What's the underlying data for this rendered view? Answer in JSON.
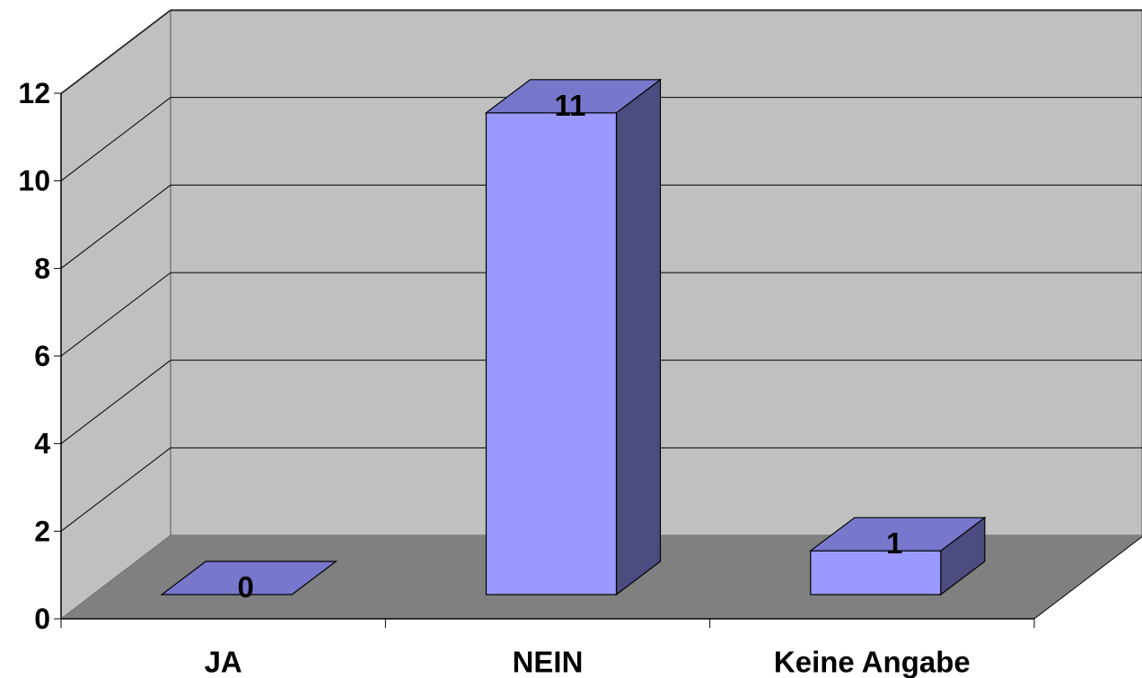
{
  "chart_data": {
    "type": "bar",
    "categories": [
      "JA",
      "NEIN",
      "Keine Angabe"
    ],
    "values": [
      0,
      11,
      1
    ],
    "data_labels": [
      "0",
      "11",
      "1"
    ],
    "ylim": [
      0,
      12
    ],
    "yticks": [
      "0",
      "2",
      "4",
      "6",
      "8",
      "10",
      "12"
    ],
    "title": "",
    "xlabel": "",
    "ylabel": "",
    "grid": true,
    "legend": "none",
    "style": "3d",
    "colors": {
      "wall_back": "#c0c0c0",
      "wall_side": "#c0c0c0",
      "floor": "#808080",
      "bar_front": "#9999ff",
      "bar_top": "#7777cc",
      "bar_side": "#4c4c80",
      "gridline": "#000000"
    }
  }
}
